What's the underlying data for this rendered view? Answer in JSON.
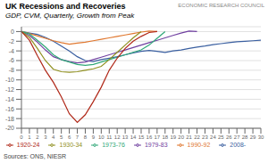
{
  "chart_data": {
    "type": "line",
    "title": "UK Recessions and Recoveries",
    "subtitle": "GDP, CVM, Quarterly, Growth from Peak",
    "annotations": [
      "ECONOMIC RESEARCH COUNCIL",
      "Sources: ONS, NIESR"
    ],
    "x": [
      0,
      1,
      2,
      3,
      4,
      5,
      6,
      7,
      8,
      9,
      10,
      11,
      12,
      13,
      14,
      15,
      16,
      17,
      18,
      19,
      20,
      21,
      22,
      23,
      24,
      25,
      26,
      27,
      28,
      29,
      30
    ],
    "xlim": [
      0,
      30
    ],
    "xticks": [
      0,
      1,
      2,
      3,
      4,
      5,
      6,
      7,
      8,
      9,
      10,
      11,
      12,
      13,
      14,
      15,
      16,
      17,
      18,
      19,
      20,
      21,
      22,
      23,
      24,
      25,
      26,
      27,
      28,
      29,
      30
    ],
    "ylim": [
      -20,
      1
    ],
    "yticks": [
      0,
      -2,
      -4,
      -6,
      -8,
      -10,
      -12,
      -14,
      -16,
      -18,
      -20
    ],
    "grid": "y",
    "legend": "bottom",
    "series": [
      {
        "name": "2008-",
        "color": "#3a5fa0",
        "values": [
          0,
          -0.3,
          -0.6,
          -1.2,
          -2.0,
          -3.0,
          -4.0,
          -5.2,
          -6.0,
          -6.2,
          -5.8,
          -5.5,
          -5.2,
          -4.8,
          -4.4,
          -4.1,
          -3.9,
          -4.1,
          -4.3,
          -4.0,
          -3.8,
          -3.5,
          -3.2,
          -3.0,
          -2.7,
          -2.5,
          -2.3,
          -2.1,
          -2.0,
          -1.9,
          -1.8
        ]
      },
      {
        "name": "1990-92",
        "color": "#e07830",
        "values": [
          0,
          -0.4,
          -0.9,
          -1.4,
          -1.9,
          -2.3,
          -2.6,
          -2.4,
          -2.2,
          -1.9,
          -1.6,
          -1.3,
          -1.0,
          -0.7,
          -0.4,
          -0.1,
          0.1,
          0,
          null,
          null,
          null,
          null,
          null,
          null,
          null,
          null,
          null,
          null,
          null,
          null,
          null
        ]
      },
      {
        "name": "1979-83",
        "color": "#7040a0",
        "values": [
          0,
          -0.8,
          -2.2,
          -3.8,
          -5.2,
          -5.8,
          -6.2,
          -6.5,
          -6.3,
          -5.8,
          -5.3,
          -4.8,
          -4.3,
          -3.8,
          -3.3,
          -2.8,
          -2.3,
          -1.8,
          -1.3,
          -0.8,
          -0.3,
          0.1,
          0,
          null,
          null,
          null,
          null,
          null,
          null,
          null,
          null
        ]
      },
      {
        "name": "1973-76",
        "color": "#30a878",
        "values": [
          0,
          -0.5,
          -1.8,
          -3.2,
          -4.8,
          -5.8,
          -6.3,
          -6.8,
          -7.0,
          -6.8,
          -6.3,
          -5.8,
          -5.3,
          -4.8,
          -4.3,
          -3.8,
          -2.8,
          -1.4,
          0,
          null,
          null,
          null,
          null,
          null,
          null,
          null,
          null,
          null,
          null,
          null,
          null
        ]
      },
      {
        "name": "1930-34",
        "color": "#909020",
        "values": [
          0,
          -1.2,
          -3.5,
          -6.0,
          -7.8,
          -8.3,
          -8.4,
          -8.3,
          -8.0,
          -7.7,
          -7.2,
          -5.8,
          -4.3,
          -2.8,
          -1.3,
          0,
          null,
          null,
          null,
          null,
          null,
          null,
          null,
          null,
          null,
          null,
          null,
          null,
          null,
          null,
          null
        ]
      },
      {
        "name": "1920-24",
        "color": "#b02818",
        "values": [
          0,
          -1.8,
          -5.0,
          -8.0,
          -10.5,
          -13.5,
          -17.0,
          -18.8,
          -17.2,
          -14.5,
          -11.5,
          -8.0,
          -5.5,
          -3.5,
          -2.0,
          -1.0,
          -0.2,
          0,
          null,
          null,
          null,
          null,
          null,
          null,
          null,
          null,
          null,
          null,
          null,
          null,
          null
        ]
      }
    ]
  }
}
